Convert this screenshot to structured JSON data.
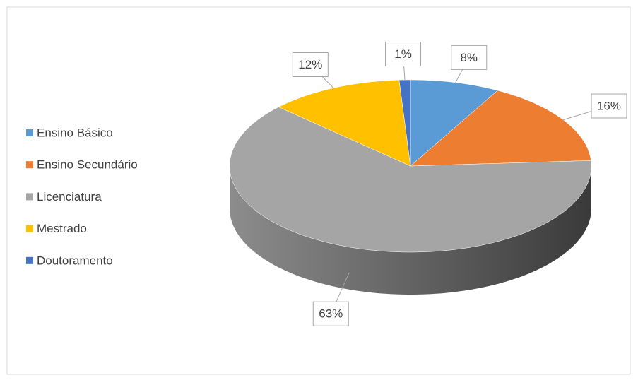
{
  "chart_data": {
    "type": "pie3d",
    "categories": [
      "Ensino Básico",
      "Ensino Secundário",
      "Licenciatura",
      "Mestrado",
      "Doutoramento"
    ],
    "values": [
      8,
      16,
      63,
      12,
      1
    ],
    "value_labels": [
      "8%",
      "16%",
      "63%",
      "12%",
      "1%"
    ],
    "colors": [
      "#5b9bd5",
      "#ed7d31",
      "#a5a5a5",
      "#ffc000",
      "#4472c4"
    ],
    "legend": "left"
  }
}
